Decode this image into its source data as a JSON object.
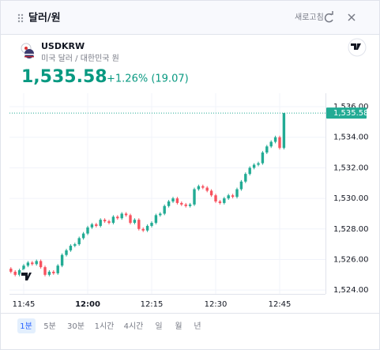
{
  "header": {
    "title": "달러/원",
    "refresh": "새로고침"
  },
  "quote": {
    "symbol": "USDKRW",
    "name": "미국 달러 / 대한민국 원",
    "price": "1,535.58",
    "change": "+1.26% (19.07)"
  },
  "tabs": [
    "1분",
    "5분",
    "30분",
    "1시간",
    "4시간",
    "일",
    "월",
    "년"
  ],
  "chart_data": {
    "type": "candlestick",
    "categories": [
      null,
      null,
      null,
      "11:45",
      null,
      null,
      null,
      null,
      null,
      null,
      null,
      null,
      null,
      null,
      null,
      null,
      null,
      null,
      "12:00",
      null,
      null,
      null,
      null,
      null,
      null,
      null,
      null,
      null,
      null,
      null,
      null,
      null,
      null,
      "12:15",
      null,
      null,
      null,
      null,
      null,
      null,
      null,
      null,
      null,
      null,
      null,
      null,
      null,
      null,
      "12:30",
      null,
      null,
      null,
      null,
      null,
      null,
      null,
      null,
      null,
      null,
      null,
      null,
      null,
      null,
      "12:45",
      null
    ],
    "ohlc": [
      [
        1525.4,
        1525.5,
        1525.1,
        1525.2
      ],
      [
        1525.2,
        1525.3,
        1524.9,
        1525.0
      ],
      [
        1525.0,
        1525.4,
        1524.9,
        1525.3
      ],
      [
        1525.3,
        1525.7,
        1525.2,
        1525.6
      ],
      [
        1525.6,
        1525.9,
        1525.5,
        1525.8
      ],
      [
        1525.8,
        1525.9,
        1525.6,
        1525.7
      ],
      [
        1525.7,
        1526.0,
        1525.6,
        1525.9
      ],
      [
        1525.9,
        1526.0,
        1525.4,
        1525.5
      ],
      [
        1525.5,
        1525.6,
        1524.9,
        1525.0
      ],
      [
        1525.0,
        1525.3,
        1524.9,
        1525.2
      ],
      [
        1525.2,
        1525.3,
        1525.0,
        1525.1
      ],
      [
        1525.1,
        1525.7,
        1525.0,
        1525.6
      ],
      [
        1525.6,
        1526.4,
        1525.5,
        1526.3
      ],
      [
        1526.3,
        1526.7,
        1526.2,
        1526.6
      ],
      [
        1526.6,
        1527.0,
        1526.5,
        1526.9
      ],
      [
        1526.9,
        1527.1,
        1526.8,
        1527.0
      ],
      [
        1527.0,
        1527.5,
        1526.9,
        1527.4
      ],
      [
        1527.4,
        1527.8,
        1527.3,
        1527.7
      ],
      [
        1527.7,
        1528.2,
        1527.6,
        1528.1
      ],
      [
        1528.1,
        1528.4,
        1528.0,
        1528.3
      ],
      [
        1528.3,
        1528.4,
        1528.1,
        1528.2
      ],
      [
        1528.2,
        1528.7,
        1528.1,
        1528.6
      ],
      [
        1528.6,
        1528.7,
        1528.4,
        1528.5
      ],
      [
        1528.5,
        1528.6,
        1528.3,
        1528.4
      ],
      [
        1528.4,
        1528.9,
        1528.3,
        1528.8
      ],
      [
        1528.8,
        1528.9,
        1528.6,
        1528.7
      ],
      [
        1528.7,
        1529.1,
        1528.6,
        1529.0
      ],
      [
        1529.0,
        1529.1,
        1528.8,
        1528.9
      ],
      [
        1528.9,
        1529.0,
        1528.3,
        1528.4
      ],
      [
        1528.4,
        1528.7,
        1528.3,
        1528.6
      ],
      [
        1528.6,
        1528.7,
        1527.9,
        1528.0
      ],
      [
        1528.0,
        1528.1,
        1527.8,
        1527.9
      ],
      [
        1527.9,
        1528.3,
        1527.8,
        1528.2
      ],
      [
        1528.2,
        1528.5,
        1528.1,
        1528.4
      ],
      [
        1528.4,
        1529.0,
        1528.3,
        1528.9
      ],
      [
        1528.9,
        1529.1,
        1528.8,
        1529.0
      ],
      [
        1529.0,
        1529.6,
        1528.9,
        1529.5
      ],
      [
        1529.5,
        1529.9,
        1529.4,
        1529.8
      ],
      [
        1529.8,
        1530.1,
        1529.7,
        1530.0
      ],
      [
        1530.0,
        1530.1,
        1529.6,
        1529.7
      ],
      [
        1529.7,
        1529.8,
        1529.5,
        1529.6
      ],
      [
        1529.6,
        1529.7,
        1529.4,
        1529.5
      ],
      [
        1529.5,
        1529.7,
        1529.4,
        1529.6
      ],
      [
        1529.6,
        1530.7,
        1529.5,
        1530.6
      ],
      [
        1530.6,
        1530.9,
        1530.5,
        1530.8
      ],
      [
        1530.8,
        1530.9,
        1530.6,
        1530.7
      ],
      [
        1530.7,
        1530.8,
        1530.4,
        1530.5
      ],
      [
        1530.5,
        1530.6,
        1530.1,
        1530.2
      ],
      [
        1530.2,
        1530.3,
        1529.7,
        1529.8
      ],
      [
        1529.8,
        1529.9,
        1529.6,
        1529.7
      ],
      [
        1529.7,
        1530.1,
        1529.6,
        1530.0
      ],
      [
        1530.0,
        1530.3,
        1529.9,
        1530.2
      ],
      [
        1530.2,
        1530.3,
        1530.0,
        1530.1
      ],
      [
        1530.1,
        1530.7,
        1530.0,
        1530.6
      ],
      [
        1530.6,
        1531.2,
        1530.5,
        1531.1
      ],
      [
        1531.1,
        1531.7,
        1531.0,
        1531.6
      ],
      [
        1531.6,
        1532.1,
        1531.5,
        1532.0
      ],
      [
        1532.0,
        1532.3,
        1531.9,
        1532.2
      ],
      [
        1532.2,
        1532.4,
        1532.1,
        1532.3
      ],
      [
        1532.3,
        1533.1,
        1532.2,
        1533.0
      ],
      [
        1533.0,
        1533.5,
        1532.9,
        1533.4
      ],
      [
        1533.4,
        1533.8,
        1533.3,
        1533.7
      ],
      [
        1533.7,
        1534.1,
        1533.6,
        1534.0
      ],
      [
        1534.0,
        1534.1,
        1533.2,
        1533.3
      ],
      [
        1533.3,
        1535.6,
        1533.2,
        1535.58
      ]
    ],
    "up_color": "#22ab94",
    "down_color": "#f7525f",
    "ylim": [
      1523.75,
      1536.88
    ],
    "yticks": [
      {
        "value": 1524,
        "label": "1,524.00"
      },
      {
        "value": 1526,
        "label": "1,526.00"
      },
      {
        "value": 1528,
        "label": "1,528.00"
      },
      {
        "value": 1530,
        "label": "1,530.00"
      },
      {
        "value": 1532,
        "label": "1,532.00"
      },
      {
        "value": 1534,
        "label": "1,534.00"
      },
      {
        "value": 1536,
        "label": "1,536.00"
      }
    ],
    "last_price": {
      "value": 1535.58,
      "label": "1,535.58"
    },
    "grid": true
  }
}
